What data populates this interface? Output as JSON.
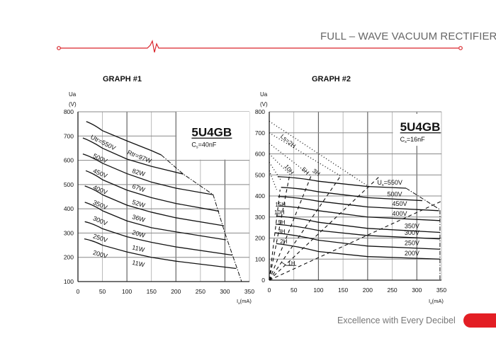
{
  "header": {
    "title": "FULL – WAVE VACUUM RECTIFIER",
    "accent_color": "#d9252b"
  },
  "footer": {
    "tagline": "Excellence with Every Decibel",
    "accent_color": "#e31e24"
  },
  "chart_data": [
    {
      "type": "line",
      "title": "GRAPH #1",
      "tube": "5U4GB",
      "capacitance": {
        "main": "C",
        "sub": "s",
        "rest": "=40nF"
      },
      "ylabel": "Ua",
      "yunit": "(V)",
      "xlabel": {
        "main": "I",
        "sub": "a",
        "rest": "(mA)"
      },
      "xlim": [
        0,
        350
      ],
      "ylim": [
        100,
        800
      ],
      "xticks": [
        "0",
        "50",
        "100",
        "150",
        "200",
        "250",
        "300",
        "350"
      ],
      "yticks": [
        "800",
        "700",
        "600",
        "500",
        "400",
        "300",
        "200",
        "100"
      ],
      "grid": true,
      "series": [
        {
          "name": "Utr=550V",
          "power": "Rtr=97W",
          "points": [
            [
              17,
              760
            ],
            [
              50,
              722
            ],
            [
              100,
              680
            ],
            [
              150,
              640
            ],
            [
              170,
              622
            ]
          ]
        },
        {
          "name": "500V",
          "power": "82W",
          "points": [
            [
              10,
              692
            ],
            [
              50,
              650
            ],
            [
              100,
              605
            ],
            [
              150,
              575
            ],
            [
              215,
              543
            ]
          ]
        },
        {
          "name": "450V",
          "power": "67W",
          "points": [
            [
              10,
              626
            ],
            [
              50,
              588
            ],
            [
              100,
              545
            ],
            [
              150,
              510
            ],
            [
              200,
              485
            ],
            [
              276,
              458
            ]
          ]
        },
        {
          "name": "400V",
          "power": "52W",
          "points": [
            [
              16,
              557
            ],
            [
              50,
              520
            ],
            [
              100,
              477
            ],
            [
              150,
              446
            ],
            [
              200,
              422
            ],
            [
              288,
              390
            ]
          ]
        },
        {
          "name": "350V",
          "power": "36W",
          "points": [
            [
              14,
              494
            ],
            [
              50,
              458
            ],
            [
              100,
              415
            ],
            [
              150,
              386
            ],
            [
              200,
              363
            ],
            [
              298,
              330
            ]
          ]
        },
        {
          "name": "300V",
          "power": "20W",
          "points": [
            [
              14,
              427
            ],
            [
              50,
              392
            ],
            [
              100,
              350
            ],
            [
              150,
              322
            ],
            [
              200,
              305
            ],
            [
              302,
              272
            ]
          ]
        },
        {
          "name": "250V",
          "power": "11W",
          "points": [
            [
              14,
              347
            ],
            [
              50,
              318
            ],
            [
              100,
              285
            ],
            [
              150,
              262
            ],
            [
              200,
              243
            ],
            [
              315,
              209
            ]
          ]
        },
        {
          "name": "200V",
          "power": "11W",
          "points": [
            [
              13,
              276
            ],
            [
              50,
              250
            ],
            [
              100,
              222
            ],
            [
              150,
              200
            ],
            [
              200,
              184
            ],
            [
              323,
              154
            ]
          ]
        }
      ],
      "envelope": [
        [
          170,
          622
        ],
        [
          215,
          543
        ],
        [
          276,
          458
        ],
        [
          300,
          300
        ],
        [
          334,
          100
        ]
      ]
    },
    {
      "type": "line",
      "title": "GRAPH #2",
      "tube": "5U4GB",
      "capacitance": {
        "main": "C",
        "sub": "s",
        "rest": "=16nF"
      },
      "ylabel": "Ua",
      "yunit": "(V)",
      "xlabel": {
        "main": "I",
        "sub": "a",
        "rest": "(mA)"
      },
      "xlim": [
        0,
        350
      ],
      "ylim": [
        0,
        800
      ],
      "xticks": [
        "0",
        "50",
        "100",
        "150",
        "200",
        "250",
        "300",
        "350"
      ],
      "yticks": [
        "800",
        "700",
        "600",
        "500",
        "400",
        "300",
        "200",
        "100",
        "0"
      ],
      "grid": true,
      "series": [
        {
          "name": "Us=550V",
          "points": [
            [
              17,
              492
            ],
            [
              100,
              470
            ],
            [
              200,
              445
            ],
            [
              278,
              437
            ]
          ]
        },
        {
          "name": "500V",
          "points": [
            [
              24,
              441
            ],
            [
              100,
              420
            ],
            [
              200,
              392
            ],
            [
              311,
              378
            ]
          ]
        },
        {
          "name": "450V",
          "points": [
            [
              18,
              398
            ],
            [
              100,
              375
            ],
            [
              200,
              348
            ],
            [
              345,
              330
            ]
          ]
        },
        {
          "name": "400V",
          "points": [
            [
              18,
              353
            ],
            [
              100,
              330
            ],
            [
              200,
              300
            ],
            [
              347,
              283
            ]
          ]
        },
        {
          "name": "350V",
          "points": [
            [
              14,
              305
            ],
            [
              100,
              275
            ],
            [
              200,
              246
            ],
            [
              347,
              227
            ]
          ]
        },
        {
          "name": "300V",
          "points": [
            [
              13,
              266
            ],
            [
              100,
              236
            ],
            [
              200,
              212
            ],
            [
              347,
              196
            ]
          ]
        },
        {
          "name": "250V",
          "points": [
            [
              12,
              225
            ],
            [
              100,
              190
            ],
            [
              200,
              162
            ],
            [
              347,
              147
            ]
          ]
        },
        {
          "name": "200V",
          "points": [
            [
              14,
              174
            ],
            [
              100,
              136
            ],
            [
              200,
              112
            ],
            [
              347,
              100
            ]
          ]
        }
      ],
      "envelope": [
        [
          278,
          437
        ],
        [
          347,
          335
        ],
        [
          347,
          0
        ]
      ],
      "choke_lines": [
        {
          "label": "1H",
          "end": [
            350,
            375
          ]
        },
        {
          "label": "2H",
          "end": [
            225,
            495
          ]
        },
        {
          "label": "3H",
          "end": [
            145,
            495
          ]
        },
        {
          "label": "5H",
          "end": [
            85,
            495
          ]
        },
        {
          "label": "10H",
          "end": [
            41,
            495
          ]
        },
        {
          "label": "15H",
          "end": [
            22,
            430
          ]
        }
      ],
      "dotted_lines": [
        {
          "label": "Ls=2H",
          "start": [
            0,
            755
          ],
          "end": [
            205,
            440
          ]
        },
        {
          "label": "3H",
          "start": [
            0,
            700
          ],
          "end": [
            145,
            495
          ]
        },
        {
          "label": "5H",
          "start": [
            0,
            650
          ],
          "end": [
            85,
            495
          ]
        },
        {
          "label": "10H",
          "start": [
            0,
            600
          ],
          "end": [
            45,
            495
          ]
        },
        {
          "label": "",
          "start": [
            0,
            560
          ],
          "end": [
            25,
            470
          ]
        },
        {
          "label": "",
          "start": [
            0,
            520
          ],
          "end": [
            15,
            430
          ]
        }
      ]
    }
  ]
}
